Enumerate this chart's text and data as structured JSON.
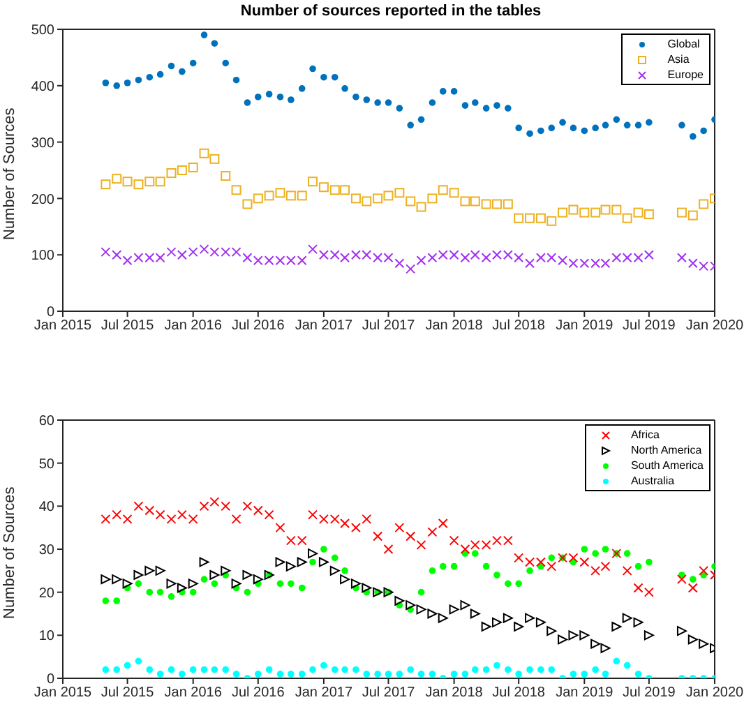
{
  "chart_data": [
    {
      "type": "scatter",
      "title": "Number of sources reported in the tables",
      "ylabel": "Number of Sources",
      "x": [
        "2015-05-01",
        "2015-06-01",
        "2015-07-01",
        "2015-08-01",
        "2015-09-01",
        "2015-10-01",
        "2015-11-01",
        "2015-12-01",
        "2016-01-01",
        "2016-02-01",
        "2016-03-01",
        "2016-04-01",
        "2016-05-01",
        "2016-06-01",
        "2016-07-01",
        "2016-08-01",
        "2016-09-01",
        "2016-10-01",
        "2016-11-01",
        "2016-12-01",
        "2017-01-01",
        "2017-02-01",
        "2017-03-01",
        "2017-04-01",
        "2017-05-01",
        "2017-06-01",
        "2017-07-01",
        "2017-08-01",
        "2017-09-01",
        "2017-10-01",
        "2017-11-01",
        "2017-12-01",
        "2018-01-01",
        "2018-02-01",
        "2018-03-01",
        "2018-04-01",
        "2018-05-01",
        "2018-06-01",
        "2018-07-01",
        "2018-08-01",
        "2018-09-01",
        "2018-10-01",
        "2018-11-01",
        "2018-12-01",
        "2019-01-01",
        "2019-02-01",
        "2019-03-01",
        "2019-04-01",
        "2019-05-01",
        "2019-06-01",
        "2019-07-01",
        "2019-08-01",
        "2019-09-01",
        "2019-10-01",
        "2019-11-01",
        "2019-12-01",
        "2020-01-01"
      ],
      "series": [
        {
          "name": "Global",
          "color": "#0072bd",
          "marker": "circle",
          "values": [
            405,
            400,
            405,
            410,
            415,
            420,
            435,
            425,
            440,
            490,
            475,
            440,
            410,
            370,
            380,
            385,
            380,
            375,
            395,
            430,
            415,
            415,
            395,
            380,
            375,
            370,
            370,
            360,
            330,
            340,
            370,
            390,
            390,
            365,
            370,
            360,
            365,
            360,
            325,
            315,
            320,
            325,
            335,
            325,
            320,
            325,
            330,
            340,
            330,
            330,
            335,
            null,
            null,
            330,
            310,
            320,
            340
          ]
        },
        {
          "name": "Asia",
          "color": "#edb120",
          "marker": "square",
          "values": [
            225,
            235,
            230,
            225,
            230,
            230,
            245,
            250,
            255,
            280,
            270,
            240,
            215,
            190,
            200,
            205,
            210,
            205,
            205,
            230,
            220,
            215,
            215,
            200,
            195,
            200,
            205,
            210,
            195,
            185,
            200,
            215,
            210,
            195,
            195,
            190,
            190,
            190,
            165,
            165,
            165,
            160,
            175,
            180,
            175,
            175,
            180,
            180,
            165,
            175,
            172,
            null,
            null,
            175,
            170,
            190,
            200
          ]
        },
        {
          "name": "Europe",
          "color": "#a230ef",
          "marker": "cross",
          "values": [
            105,
            100,
            90,
            95,
            95,
            95,
            105,
            100,
            105,
            110,
            105,
            105,
            105,
            95,
            90,
            90,
            90,
            90,
            90,
            110,
            100,
            100,
            95,
            100,
            100,
            95,
            95,
            85,
            75,
            90,
            95,
            100,
            100,
            95,
            100,
            95,
            100,
            100,
            95,
            85,
            95,
            95,
            90,
            85,
            85,
            85,
            85,
            95,
            95,
            95,
            100,
            null,
            null,
            95,
            85,
            80,
            80
          ]
        }
      ],
      "xlim": [
        "2015-01-01",
        "2020-01-01"
      ],
      "xticks": [
        {
          "value": "2015-01-01",
          "label": "Jan 2015"
        },
        {
          "value": "2015-07-01",
          "label": "Jul 2015"
        },
        {
          "value": "2016-01-01",
          "label": "Jan 2016"
        },
        {
          "value": "2016-07-01",
          "label": "Jul 2016"
        },
        {
          "value": "2017-01-01",
          "label": "Jan 2017"
        },
        {
          "value": "2017-07-01",
          "label": "Jul 2017"
        },
        {
          "value": "2018-01-01",
          "label": "Jan 2018"
        },
        {
          "value": "2018-07-01",
          "label": "Jul 2018"
        },
        {
          "value": "2019-01-01",
          "label": "Jan 2019"
        },
        {
          "value": "2019-07-01",
          "label": "Jul 2019"
        },
        {
          "value": "2020-01-01",
          "label": "Jan 2020"
        }
      ],
      "ylim": [
        0,
        500
      ],
      "yticks": [
        0,
        100,
        200,
        300,
        400,
        500
      ],
      "legend": "top right"
    },
    {
      "type": "scatter",
      "ylabel": "Number of Sources",
      "x": [
        "2015-05-01",
        "2015-06-01",
        "2015-07-01",
        "2015-08-01",
        "2015-09-01",
        "2015-10-01",
        "2015-11-01",
        "2015-12-01",
        "2016-01-01",
        "2016-02-01",
        "2016-03-01",
        "2016-04-01",
        "2016-05-01",
        "2016-06-01",
        "2016-07-01",
        "2016-08-01",
        "2016-09-01",
        "2016-10-01",
        "2016-11-01",
        "2016-12-01",
        "2017-01-01",
        "2017-02-01",
        "2017-03-01",
        "2017-04-01",
        "2017-05-01",
        "2017-06-01",
        "2017-07-01",
        "2017-08-01",
        "2017-09-01",
        "2017-10-01",
        "2017-11-01",
        "2017-12-01",
        "2018-01-01",
        "2018-02-01",
        "2018-03-01",
        "2018-04-01",
        "2018-05-01",
        "2018-06-01",
        "2018-07-01",
        "2018-08-01",
        "2018-09-01",
        "2018-10-01",
        "2018-11-01",
        "2018-12-01",
        "2019-01-01",
        "2019-02-01",
        "2019-03-01",
        "2019-04-01",
        "2019-05-01",
        "2019-06-01",
        "2019-07-01",
        "2019-08-01",
        "2019-09-01",
        "2019-10-01",
        "2019-11-01",
        "2019-12-01",
        "2020-01-01"
      ],
      "series": [
        {
          "name": "Africa",
          "color": "#ff0000",
          "marker": "cross",
          "values": [
            37,
            38,
            37,
            40,
            39,
            38,
            37,
            38,
            37,
            40,
            41,
            40,
            37,
            40,
            39,
            38,
            35,
            32,
            32,
            38,
            37,
            37,
            36,
            35,
            37,
            33,
            30,
            35,
            33,
            31,
            34,
            36,
            32,
            30,
            31,
            31,
            32,
            32,
            28,
            27,
            27,
            26,
            28,
            28,
            27,
            25,
            26,
            29,
            25,
            21,
            20,
            null,
            null,
            23,
            21,
            25,
            24
          ]
        },
        {
          "name": "North America",
          "color": "#000000",
          "marker": "triangle",
          "values": [
            23,
            23,
            22,
            24,
            25,
            25,
            22,
            21,
            22,
            27,
            24,
            25,
            22,
            24,
            23,
            24,
            27,
            26,
            27,
            29,
            27,
            25,
            23,
            22,
            21,
            20,
            20,
            18,
            17,
            16,
            15,
            14,
            16,
            17,
            15,
            12,
            13,
            14,
            12,
            14,
            13,
            11,
            9,
            10,
            10,
            8,
            7,
            12,
            14,
            13,
            10,
            null,
            null,
            11,
            9,
            8,
            7
          ]
        },
        {
          "name": "South America",
          "color": "#00ff00",
          "marker": "circle",
          "values": [
            18,
            18,
            21,
            22,
            20,
            20,
            19,
            20,
            20,
            23,
            22,
            24,
            21,
            20,
            22,
            24,
            22,
            22,
            21,
            27,
            30,
            28,
            25,
            21,
            20,
            20,
            20,
            17,
            16,
            20,
            25,
            26,
            26,
            29,
            29,
            26,
            24,
            22,
            22,
            25,
            26,
            28,
            28,
            27,
            30,
            29,
            30,
            29,
            29,
            26,
            27,
            null,
            null,
            24,
            23,
            24,
            26
          ]
        },
        {
          "name": "Australia",
          "color": "#00ffff",
          "marker": "circle",
          "values": [
            2,
            2,
            3,
            4,
            2,
            1,
            2,
            1,
            2,
            2,
            2,
            2,
            1,
            0,
            1,
            2,
            1,
            1,
            1,
            2,
            3,
            2,
            2,
            2,
            1,
            1,
            1,
            1,
            2,
            1,
            1,
            0,
            1,
            1,
            2,
            2,
            3,
            2,
            1,
            2,
            2,
            2,
            0,
            1,
            1,
            2,
            1,
            4,
            3,
            1,
            0,
            null,
            null,
            0,
            0,
            0,
            0
          ]
        }
      ],
      "xlim": [
        "2015-01-01",
        "2020-01-01"
      ],
      "xticks": [
        {
          "value": "2015-01-01",
          "label": "Jan 2015"
        },
        {
          "value": "2015-07-01",
          "label": "Jul 2015"
        },
        {
          "value": "2016-01-01",
          "label": "Jan 2016"
        },
        {
          "value": "2016-07-01",
          "label": "Jul 2016"
        },
        {
          "value": "2017-01-01",
          "label": "Jan 2017"
        },
        {
          "value": "2017-07-01",
          "label": "Jul 2017"
        },
        {
          "value": "2018-01-01",
          "label": "Jan 2018"
        },
        {
          "value": "2018-07-01",
          "label": "Jul 2018"
        },
        {
          "value": "2019-01-01",
          "label": "Jan 2019"
        },
        {
          "value": "2019-07-01",
          "label": "Jul 2019"
        },
        {
          "value": "2020-01-01",
          "label": "Jan 2020"
        }
      ],
      "ylim": [
        0,
        60
      ],
      "yticks": [
        0,
        10,
        20,
        30,
        40,
        50,
        60
      ],
      "legend": "top right"
    }
  ]
}
